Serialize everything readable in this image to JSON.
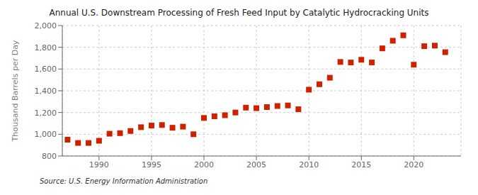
{
  "chart_data": {
    "type": "scatter",
    "title": "Annual U.S. Downstream Processing of Fresh Feed Input by Catalytic Hydrocracking Units",
    "y_label": "Thousand Barrels per Day",
    "source": "Source: U.S. Energy Information Administration",
    "color": "#cc2200",
    "marker": "square",
    "grid": true,
    "xlim": [
      1986.5,
      2024.5
    ],
    "ylim": [
      800,
      2000
    ],
    "xticks": [
      1990,
      1995,
      2000,
      2005,
      2010,
      2015,
      2020
    ],
    "yticks": [
      800,
      {
        "value": 1000,
        "label": "1,000"
      },
      {
        "value": 1200,
        "label": "1,200"
      },
      {
        "value": 1400,
        "label": "1,400"
      },
      {
        "value": 1600,
        "label": "1,600"
      },
      {
        "value": 1800,
        "label": "1,800"
      },
      {
        "value": 2000,
        "label": "2,000"
      }
    ],
    "x": [
      1987,
      1988,
      1989,
      1990,
      1991,
      1992,
      1993,
      1994,
      1995,
      1996,
      1997,
      1998,
      1999,
      2000,
      2001,
      2002,
      2003,
      2004,
      2005,
      2006,
      2007,
      2008,
      2009,
      2010,
      2011,
      2012,
      2013,
      2014,
      2015,
      2016,
      2017,
      2018,
      2019,
      2020,
      2021,
      2022,
      2023
    ],
    "values": [
      950,
      920,
      920,
      940,
      1005,
      1010,
      1030,
      1065,
      1080,
      1085,
      1060,
      1070,
      1000,
      1150,
      1165,
      1175,
      1200,
      1245,
      1240,
      1250,
      1260,
      1265,
      1230,
      1410,
      1460,
      1520,
      1665,
      1660,
      1685,
      1660,
      1790,
      1860,
      1910,
      1640,
      1810,
      1815,
      1755
    ]
  }
}
